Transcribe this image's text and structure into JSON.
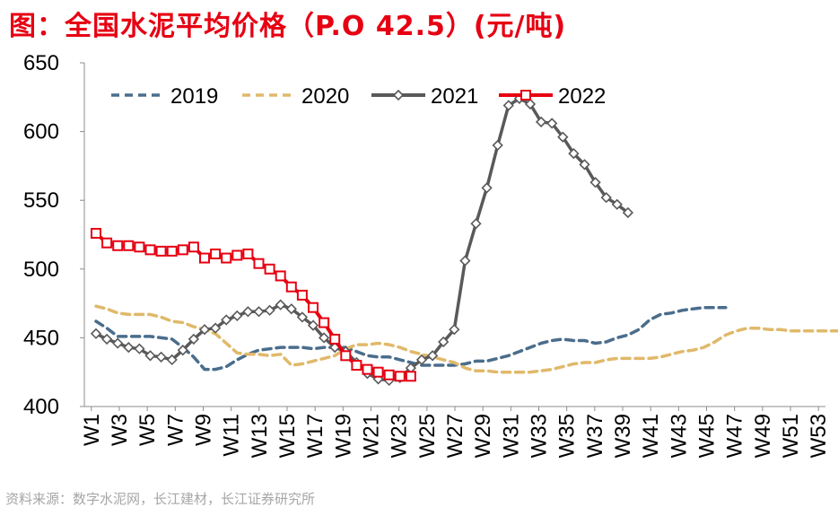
{
  "title": "图：全国水泥平均价格（P.O 42.5）(元/吨)",
  "source": "资料来源：数字水泥网，长江建材，长江证券研究所",
  "colors": {
    "title": "#e60012",
    "s2019": "#4a6d8c",
    "s2020": "#e0b96a",
    "s2021": "#595959",
    "s2022": "#e60012"
  },
  "chart_data": {
    "type": "line",
    "ylim": [
      400,
      650
    ],
    "yticks": [
      400,
      450,
      500,
      550,
      600,
      650
    ],
    "x_tick_labels": [
      "W1",
      "W3",
      "W5",
      "W7",
      "W9",
      "W11",
      "W13",
      "W15",
      "W17",
      "W19",
      "W21",
      "W23",
      "W25",
      "W27",
      "W29",
      "W31",
      "W33",
      "W35",
      "W37",
      "W39",
      "W41",
      "W43",
      "W45",
      "W47",
      "W49",
      "W51",
      "W53"
    ],
    "legend_position": "top",
    "series": [
      {
        "name": "2019",
        "style": "dashed",
        "markers": false,
        "color": "#4a6d8c",
        "points": [
          [
            1,
            462
          ],
          [
            2,
            457
          ],
          [
            3,
            451
          ],
          [
            4,
            451
          ],
          [
            5,
            451
          ],
          [
            6,
            451
          ],
          [
            7,
            450
          ],
          [
            8,
            449
          ],
          [
            9,
            443
          ],
          [
            10,
            436
          ],
          [
            11,
            427
          ],
          [
            12,
            427
          ],
          [
            13,
            429
          ],
          [
            14,
            434
          ],
          [
            15,
            438
          ],
          [
            16,
            441
          ],
          [
            17,
            442
          ],
          [
            18,
            443
          ],
          [
            19,
            443
          ],
          [
            20,
            443
          ],
          [
            21,
            442
          ],
          [
            22,
            443
          ],
          [
            23,
            443
          ],
          [
            24,
            443
          ],
          [
            25,
            440
          ],
          [
            26,
            437
          ],
          [
            27,
            436
          ],
          [
            28,
            436
          ],
          [
            29,
            434
          ],
          [
            30,
            432
          ],
          [
            31,
            430
          ],
          [
            32,
            430
          ],
          [
            33,
            430
          ],
          [
            34,
            430
          ],
          [
            35,
            431
          ],
          [
            36,
            433
          ],
          [
            37,
            433
          ],
          [
            38,
            435
          ],
          [
            39,
            437
          ],
          [
            40,
            440
          ],
          [
            41,
            443
          ],
          [
            42,
            446
          ],
          [
            43,
            448
          ],
          [
            44,
            449
          ],
          [
            45,
            448
          ],
          [
            46,
            448
          ],
          [
            47,
            446
          ],
          [
            48,
            447
          ],
          [
            49,
            450
          ],
          [
            50,
            452
          ],
          [
            51,
            456
          ],
          [
            52,
            463
          ],
          [
            53,
            467
          ],
          [
            54,
            468
          ],
          [
            55,
            470
          ],
          [
            56,
            471
          ],
          [
            57,
            472
          ],
          [
            58,
            472
          ],
          [
            59,
            472
          ]
        ]
      },
      {
        "name": "2020",
        "style": "dashed",
        "markers": false,
        "color": "#e0b96a",
        "points": [
          [
            1,
            473
          ],
          [
            2,
            471
          ],
          [
            3,
            468
          ],
          [
            4,
            467
          ],
          [
            5,
            467
          ],
          [
            6,
            467
          ],
          [
            7,
            465
          ],
          [
            8,
            462
          ],
          [
            9,
            461
          ],
          [
            10,
            458
          ],
          [
            11,
            456
          ],
          [
            12,
            453
          ],
          [
            13,
            446
          ],
          [
            14,
            439
          ],
          [
            15,
            438
          ],
          [
            16,
            438
          ],
          [
            17,
            437
          ],
          [
            18,
            438
          ],
          [
            19,
            430
          ],
          [
            20,
            431
          ],
          [
            21,
            433
          ],
          [
            22,
            435
          ],
          [
            23,
            437
          ],
          [
            24,
            442
          ],
          [
            25,
            445
          ],
          [
            26,
            445
          ],
          [
            27,
            446
          ],
          [
            28,
            445
          ],
          [
            29,
            443
          ],
          [
            30,
            440
          ],
          [
            31,
            438
          ],
          [
            32,
            436
          ],
          [
            33,
            434
          ],
          [
            34,
            432
          ],
          [
            35,
            428
          ],
          [
            36,
            426
          ],
          [
            37,
            426
          ],
          [
            38,
            425
          ],
          [
            39,
            425
          ],
          [
            40,
            425
          ],
          [
            41,
            425
          ],
          [
            42,
            426
          ],
          [
            43,
            427
          ],
          [
            44,
            429
          ],
          [
            45,
            431
          ],
          [
            46,
            432
          ],
          [
            47,
            432
          ],
          [
            48,
            434
          ],
          [
            49,
            435
          ],
          [
            50,
            435
          ],
          [
            51,
            435
          ],
          [
            52,
            435
          ],
          [
            53,
            436
          ],
          [
            54,
            438
          ],
          [
            55,
            440
          ],
          [
            56,
            441
          ],
          [
            57,
            443
          ],
          [
            58,
            447
          ],
          [
            59,
            452
          ],
          [
            60,
            455
          ],
          [
            61,
            457
          ],
          [
            62,
            457
          ],
          [
            63,
            456
          ],
          [
            64,
            456
          ],
          [
            65,
            455
          ],
          [
            66,
            455
          ],
          [
            67,
            455
          ],
          [
            68,
            455
          ],
          [
            69,
            455
          ],
          [
            70,
            455
          ]
        ]
      },
      {
        "name": "2021",
        "style": "solid",
        "markers": "diamond",
        "color": "#595959",
        "points": [
          [
            1,
            453
          ],
          [
            2,
            449
          ],
          [
            3,
            446
          ],
          [
            4,
            443
          ],
          [
            5,
            442
          ],
          [
            6,
            437
          ],
          [
            7,
            436
          ],
          [
            8,
            434
          ],
          [
            9,
            441
          ],
          [
            10,
            449
          ],
          [
            11,
            456
          ],
          [
            12,
            457
          ],
          [
            13,
            463
          ],
          [
            14,
            466
          ],
          [
            15,
            469
          ],
          [
            16,
            469
          ],
          [
            17,
            470
          ],
          [
            18,
            474
          ],
          [
            19,
            471
          ],
          [
            20,
            465
          ],
          [
            21,
            459
          ],
          [
            22,
            450
          ],
          [
            23,
            443
          ],
          [
            24,
            440
          ],
          [
            25,
            432
          ],
          [
            26,
            424
          ],
          [
            27,
            420
          ],
          [
            28,
            419
          ],
          [
            29,
            421
          ],
          [
            30,
            428
          ],
          [
            31,
            434
          ],
          [
            32,
            437
          ],
          [
            33,
            447
          ],
          [
            34,
            456
          ],
          [
            35,
            506
          ],
          [
            36,
            533
          ],
          [
            37,
            559
          ],
          [
            38,
            590
          ],
          [
            39,
            619
          ],
          [
            40,
            624
          ],
          [
            41,
            620
          ],
          [
            42,
            607
          ],
          [
            43,
            606
          ],
          [
            44,
            596
          ],
          [
            45,
            584
          ],
          [
            46,
            576
          ],
          [
            47,
            563
          ],
          [
            48,
            552
          ],
          [
            49,
            547
          ],
          [
            50,
            541
          ]
        ]
      },
      {
        "name": "2022",
        "style": "solid",
        "markers": "square",
        "color": "#e60012",
        "points": [
          [
            1,
            526
          ],
          [
            2,
            519
          ],
          [
            3,
            517
          ],
          [
            4,
            517
          ],
          [
            5,
            516
          ],
          [
            6,
            514
          ],
          [
            7,
            513
          ],
          [
            8,
            513
          ],
          [
            9,
            514
          ],
          [
            10,
            516
          ],
          [
            11,
            508
          ],
          [
            12,
            511
          ],
          [
            13,
            508
          ],
          [
            14,
            510
          ],
          [
            15,
            511
          ],
          [
            16,
            504
          ],
          [
            17,
            500
          ],
          [
            18,
            495
          ],
          [
            19,
            487
          ],
          [
            20,
            481
          ],
          [
            21,
            472
          ],
          [
            22,
            461
          ],
          [
            23,
            449
          ],
          [
            24,
            437
          ],
          [
            25,
            430
          ],
          [
            26,
            427
          ],
          [
            27,
            425
          ],
          [
            28,
            423
          ],
          [
            29,
            422
          ],
          [
            30,
            422
          ]
        ]
      }
    ]
  }
}
